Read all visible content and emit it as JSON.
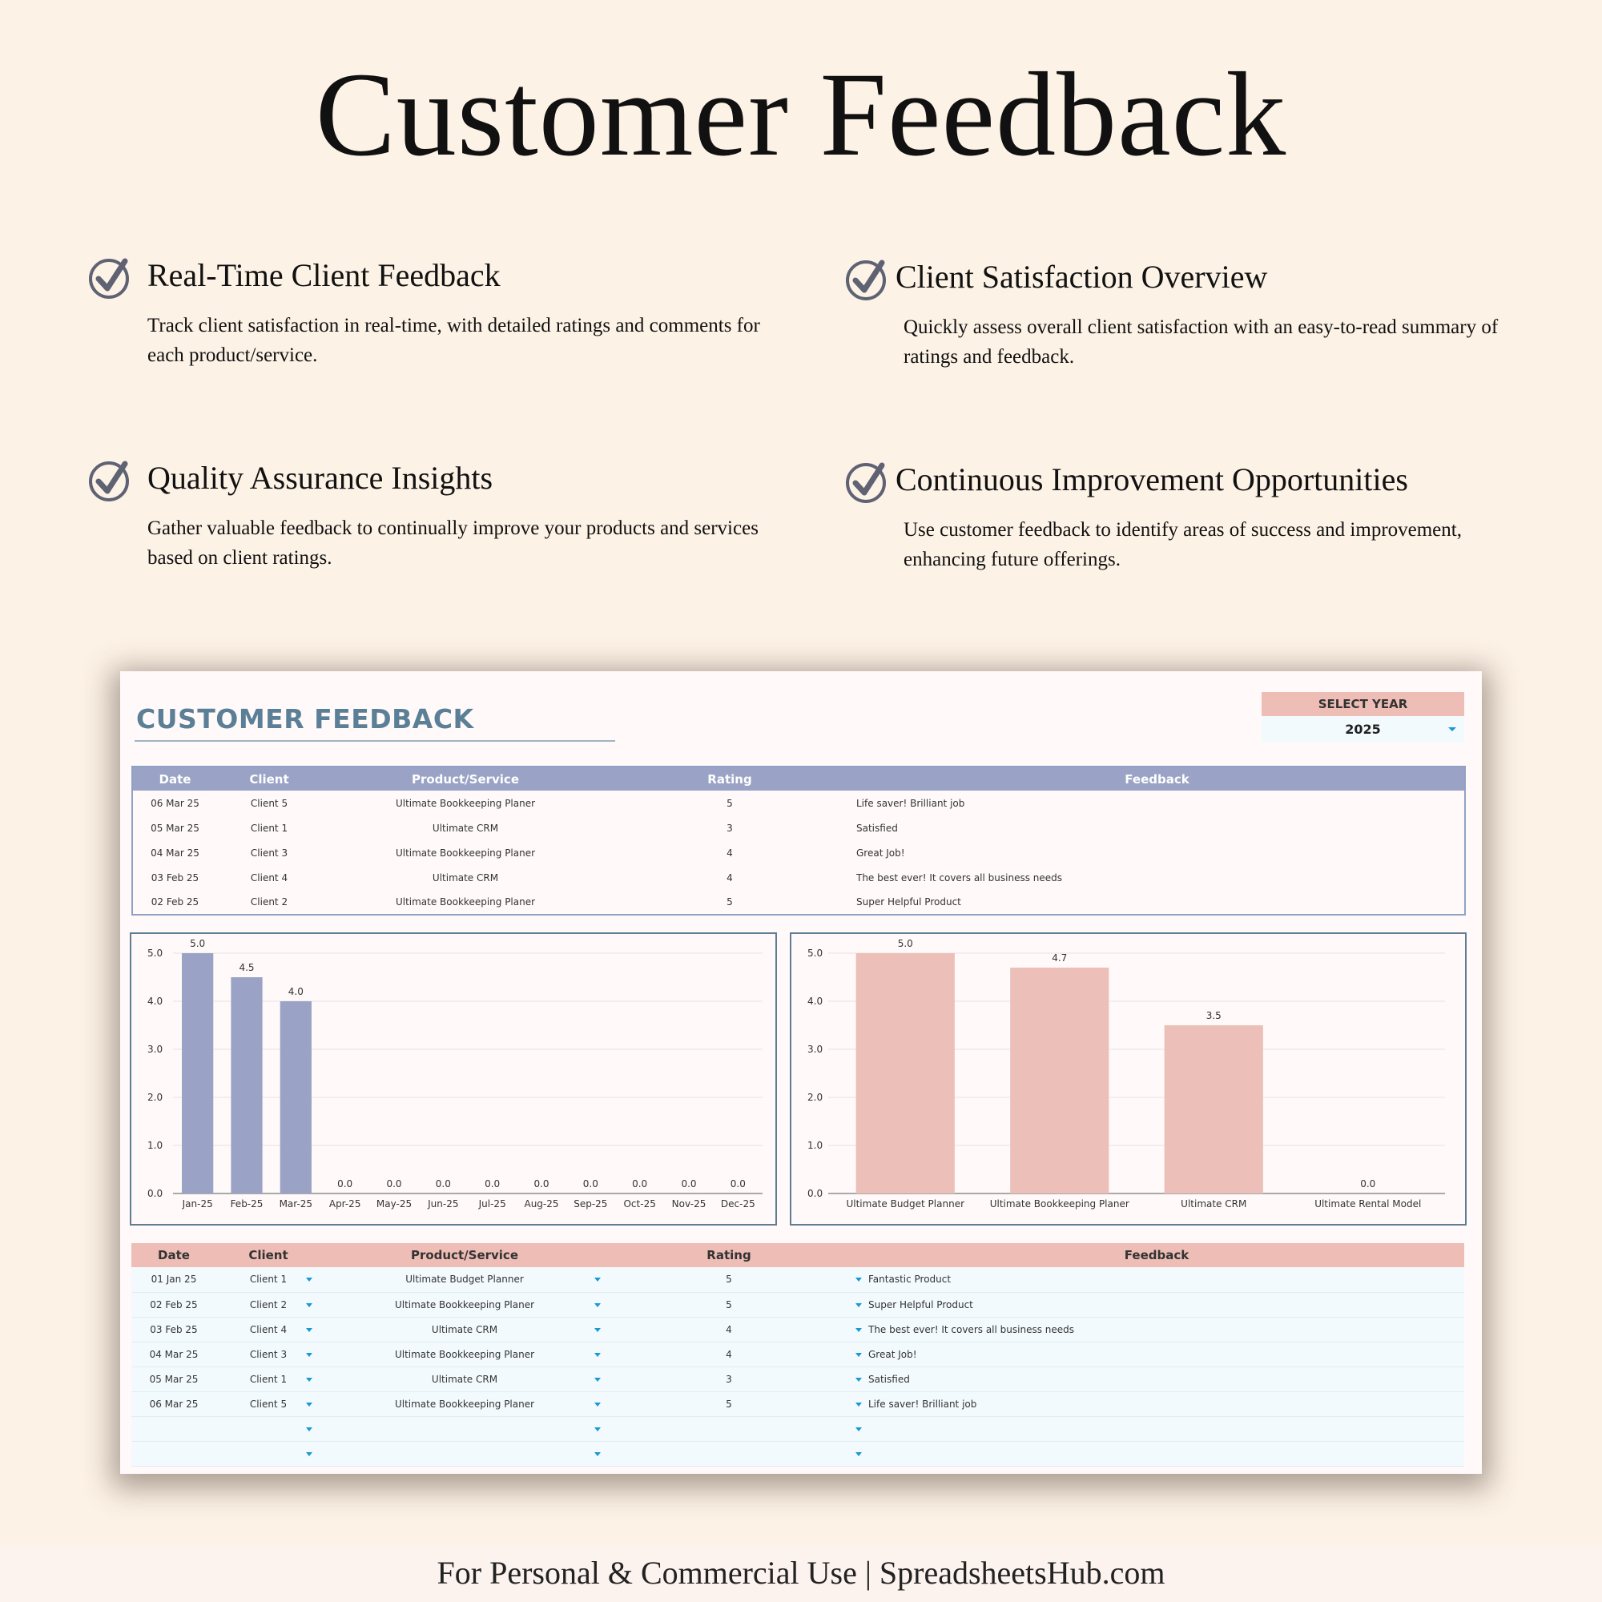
{
  "page": {
    "title": "Customer Feedback",
    "footer": "For Personal & Commercial Use  |  SpreadsheetsHub.com"
  },
  "features": [
    {
      "title": "Real-Time Client Feedback",
      "desc": "Track client satisfaction in real-time, with detailed ratings and comments for each product/service."
    },
    {
      "title": "Client Satisfaction Overview",
      "desc": "Quickly assess overall client satisfaction with an easy-to-read summary of ratings and feedback."
    },
    {
      "title": "Quality Assurance Insights",
      "desc": "Gather valuable feedback to continually improve your products and services based on client ratings."
    },
    {
      "title": "Continuous Improvement Opportunities",
      "desc": "Use customer feedback to identify areas of success and improvement, enhancing future offerings."
    }
  ],
  "dashboard": {
    "title": "CUSTOMER FEEDBACK",
    "select_year_label": "SELECT YEAR",
    "selected_year": "2025",
    "columns": [
      "Date",
      "Client",
      "Product/Service",
      "Rating",
      "Feedback"
    ],
    "recent_rows": [
      [
        "06 Mar 25",
        "Client 5",
        "Ultimate Bookkeeping Planer",
        "5",
        "Life saver! Brilliant job"
      ],
      [
        "05 Mar 25",
        "Client 1",
        "Ultimate CRM",
        "3",
        "Satisfied"
      ],
      [
        "04 Mar 25",
        "Client 3",
        "Ultimate Bookkeeping Planer",
        "4",
        "Great Job!"
      ],
      [
        "03 Feb 25",
        "Client 4",
        "Ultimate CRM",
        "4",
        "The best ever! It covers all business needs"
      ],
      [
        "02 Feb 25",
        "Client 2",
        "Ultimate Bookkeeping Planer",
        "5",
        "Super Helpful Product"
      ]
    ],
    "entry_rows": [
      [
        "01 Jan 25",
        "Client 1",
        "Ultimate Budget Planner",
        "5",
        "Fantastic Product"
      ],
      [
        "02 Feb 25",
        "Client 2",
        "Ultimate Bookkeeping Planer",
        "5",
        "Super Helpful Product"
      ],
      [
        "03 Feb 25",
        "Client 4",
        "Ultimate CRM",
        "4",
        "The best ever! It covers all business needs"
      ],
      [
        "04 Mar 25",
        "Client 3",
        "Ultimate Bookkeeping Planer",
        "4",
        "Great Job!"
      ],
      [
        "05 Mar 25",
        "Client 1",
        "Ultimate CRM",
        "3",
        "Satisfied"
      ],
      [
        "06 Mar 25",
        "Client 5",
        "Ultimate Bookkeeping Planer",
        "5",
        "Life saver! Brilliant job"
      ],
      [
        "",
        "",
        "",
        "",
        ""
      ],
      [
        "",
        "",
        "",
        "",
        ""
      ]
    ]
  },
  "colors": {
    "month_bar": "#9aa3c5",
    "product_bar": "#ecbfb8",
    "accent_blue": "#1a98d5",
    "title_blue": "#5b7f96"
  },
  "chart_data": [
    {
      "type": "bar",
      "categories": [
        "Jan-25",
        "Feb-25",
        "Mar-25",
        "Apr-25",
        "May-25",
        "Jun-25",
        "Jul-25",
        "Aug-25",
        "Sep-25",
        "Oct-25",
        "Nov-25",
        "Dec-25"
      ],
      "values": [
        5.0,
        4.5,
        4.0,
        0.0,
        0.0,
        0.0,
        0.0,
        0.0,
        0.0,
        0.0,
        0.0,
        0.0
      ],
      "ylim": [
        0,
        5
      ],
      "yticks": [
        "0.0",
        "1.0",
        "2.0",
        "3.0",
        "4.0",
        "5.0"
      ],
      "data_labels": true,
      "grid": true
    },
    {
      "type": "bar",
      "categories": [
        "Ultimate Budget Planner",
        "Ultimate Bookkeeping Planer",
        "Ultimate CRM",
        "Ultimate Rental Model"
      ],
      "values": [
        5.0,
        4.7,
        3.5,
        0.0
      ],
      "ylim": [
        0,
        5
      ],
      "yticks": [
        "0.0",
        "1.0",
        "2.0",
        "3.0",
        "4.0",
        "5.0"
      ],
      "data_labels": true,
      "grid": true
    }
  ]
}
